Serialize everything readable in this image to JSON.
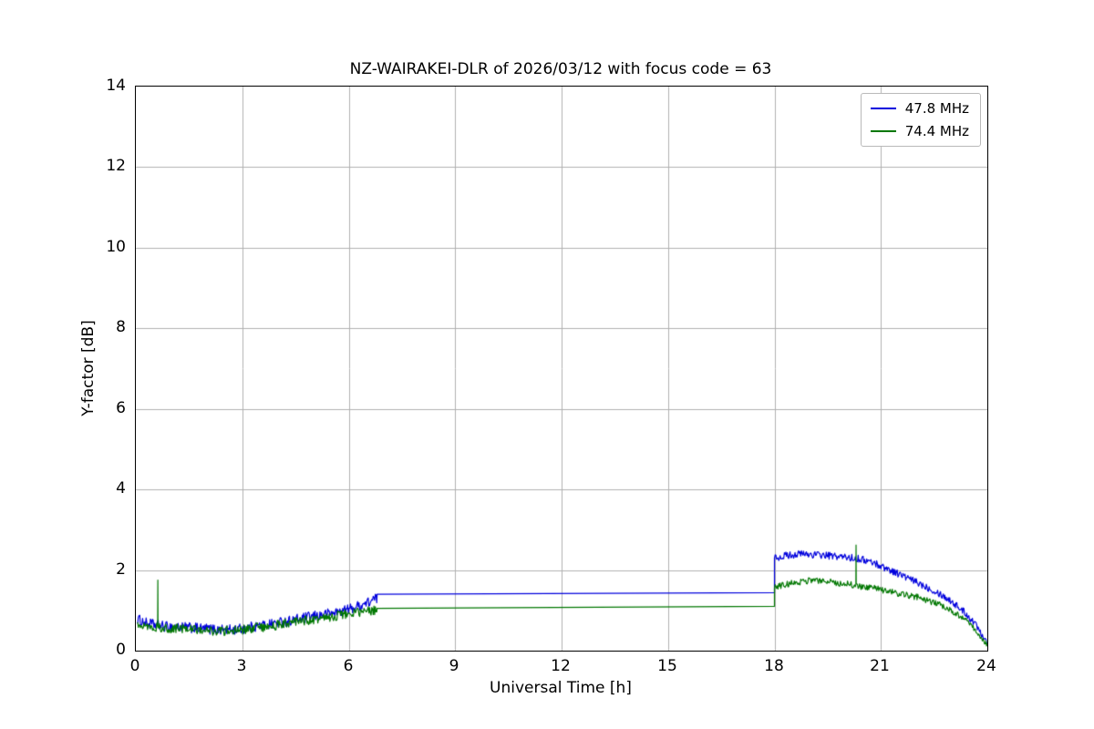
{
  "chart_data": {
    "type": "line",
    "title": "NZ-WAIRAKEI-DLR of 2026/03/12 with focus code = 63",
    "xlabel": "Universal Time [h]",
    "ylabel": "Y-factor [dB]",
    "xlim": [
      0,
      24
    ],
    "ylim": [
      0,
      14
    ],
    "xticks": [
      0,
      3,
      6,
      9,
      12,
      15,
      18,
      21,
      24
    ],
    "yticks": [
      0,
      2,
      4,
      6,
      8,
      10,
      12,
      14
    ],
    "grid": true,
    "grid_color": "#b0b0b0",
    "legend_position": "upper right",
    "series": [
      {
        "name": "47.8 MHz",
        "color": "#0000dd",
        "segments": [
          {
            "type": "noisy",
            "noise": 0.13,
            "step": 0.02,
            "points": [
              [
                0.05,
                0.78
              ],
              [
                0.3,
                0.68
              ],
              [
                0.8,
                0.6
              ],
              [
                1.3,
                0.58
              ],
              [
                1.8,
                0.55
              ],
              [
                2.3,
                0.52
              ],
              [
                2.8,
                0.52
              ],
              [
                3.2,
                0.58
              ],
              [
                3.7,
                0.65
              ],
              [
                4.2,
                0.72
              ],
              [
                4.7,
                0.8
              ],
              [
                5.2,
                0.88
              ],
              [
                5.7,
                0.96
              ],
              [
                6.1,
                1.05
              ],
              [
                6.5,
                1.18
              ],
              [
                6.8,
                1.3
              ]
            ]
          },
          {
            "type": "line",
            "points": [
              [
                6.8,
                1.4
              ],
              [
                18.0,
                1.44
              ]
            ]
          },
          {
            "type": "noisy",
            "noise": 0.09,
            "step": 0.02,
            "points": [
              [
                18.0,
                2.3
              ],
              [
                18.3,
                2.36
              ],
              [
                18.7,
                2.4
              ],
              [
                19.2,
                2.38
              ],
              [
                19.6,
                2.35
              ],
              [
                20.0,
                2.32
              ],
              [
                20.4,
                2.28
              ],
              [
                20.8,
                2.18
              ],
              [
                21.0,
                2.1
              ],
              [
                21.4,
                1.95
              ],
              [
                21.8,
                1.78
              ],
              [
                22.2,
                1.62
              ],
              [
                22.6,
                1.45
              ],
              [
                23.0,
                1.22
              ],
              [
                23.4,
                0.92
              ],
              [
                23.7,
                0.62
              ],
              [
                24.0,
                0.22
              ]
            ]
          }
        ],
        "spikes": []
      },
      {
        "name": "74.4 MHz",
        "color": "#007700",
        "segments": [
          {
            "type": "noisy",
            "noise": 0.12,
            "step": 0.02,
            "points": [
              [
                0.05,
                0.7
              ],
              [
                0.3,
                0.62
              ],
              [
                0.8,
                0.56
              ],
              [
                1.3,
                0.54
              ],
              [
                1.8,
                0.52
              ],
              [
                2.3,
                0.49
              ],
              [
                2.8,
                0.5
              ],
              [
                3.2,
                0.55
              ],
              [
                3.7,
                0.6
              ],
              [
                4.2,
                0.66
              ],
              [
                4.7,
                0.73
              ],
              [
                5.2,
                0.8
              ],
              [
                5.7,
                0.87
              ],
              [
                6.1,
                0.93
              ],
              [
                6.5,
                0.98
              ],
              [
                6.8,
                1.02
              ]
            ]
          },
          {
            "type": "line",
            "points": [
              [
                6.8,
                1.05
              ],
              [
                18.0,
                1.1
              ]
            ]
          },
          {
            "type": "noisy",
            "noise": 0.08,
            "step": 0.02,
            "points": [
              [
                18.0,
                1.58
              ],
              [
                18.4,
                1.66
              ],
              [
                18.8,
                1.72
              ],
              [
                19.2,
                1.74
              ],
              [
                19.6,
                1.7
              ],
              [
                20.0,
                1.66
              ],
              [
                20.4,
                1.6
              ],
              [
                20.8,
                1.55
              ],
              [
                21.2,
                1.48
              ],
              [
                21.6,
                1.4
              ],
              [
                22.0,
                1.33
              ],
              [
                22.4,
                1.22
              ],
              [
                22.8,
                1.08
              ],
              [
                23.2,
                0.88
              ],
              [
                23.6,
                0.58
              ],
              [
                24.0,
                0.12
              ]
            ]
          }
        ],
        "spikes": [
          [
            0.62,
            1.75
          ],
          [
            20.3,
            2.62
          ]
        ]
      }
    ]
  }
}
